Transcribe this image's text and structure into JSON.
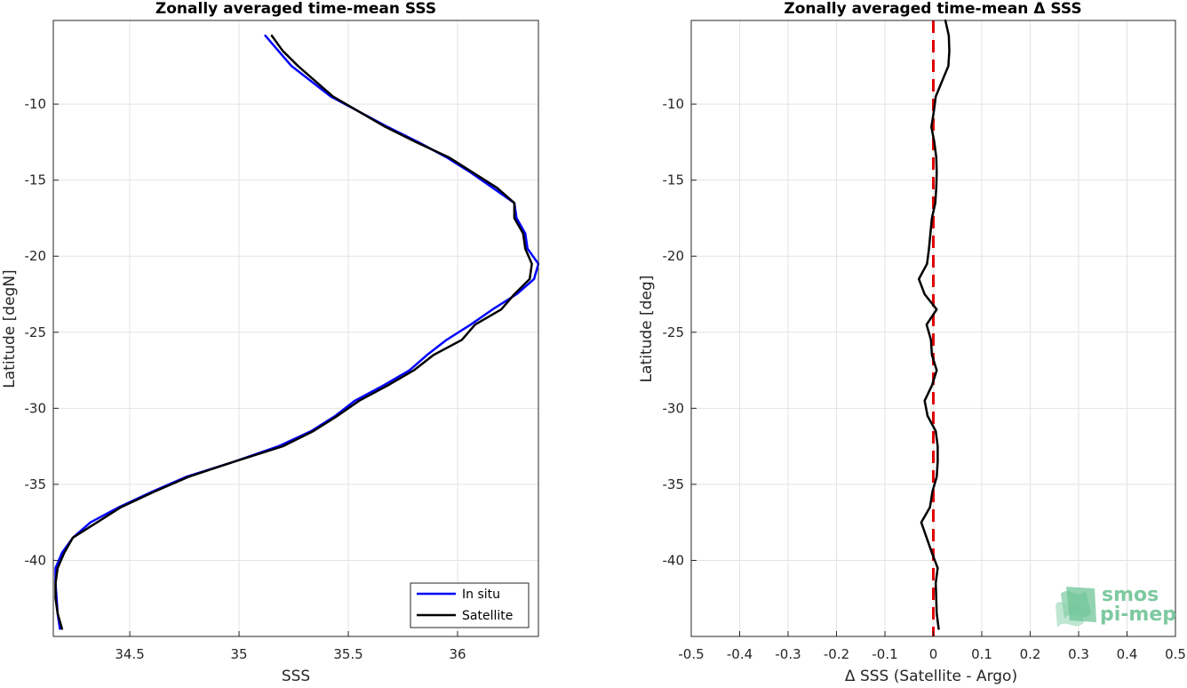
{
  "chart_data": [
    {
      "type": "line",
      "title": "Zonally averaged time-mean SSS",
      "xlabel": "SSS",
      "ylabel": "Latitude [degN]",
      "xlim": [
        34.15,
        36.37
      ],
      "ylim": [
        -45,
        -4.5
      ],
      "xticks": [
        34.5,
        35,
        35.5,
        36
      ],
      "xtick_labels": [
        "34.5",
        "35",
        "35.5",
        "36"
      ],
      "yticks": [
        -40,
        -35,
        -30,
        -25,
        -20,
        -15,
        -10
      ],
      "ytick_labels": [
        "-40",
        "-35",
        "-30",
        "-25",
        "-20",
        "-15",
        "-10"
      ],
      "grid": true,
      "legend_position": "bottom-right",
      "series": [
        {
          "name": "In situ",
          "color": "#0000ff",
          "x": [
            35.12,
            35.18,
            35.24,
            35.33,
            35.42,
            35.55,
            35.68,
            35.82,
            35.95,
            36.06,
            36.16,
            36.26,
            36.27,
            36.31,
            36.32,
            36.37,
            36.35,
            36.27,
            36.16,
            36.06,
            35.95,
            35.86,
            35.78,
            35.66,
            35.53,
            35.44,
            35.33,
            35.18,
            34.98,
            34.76,
            34.6,
            34.45,
            34.32,
            34.24,
            34.19,
            34.16,
            34.16,
            34.17,
            34.18
          ],
          "y": [
            -5.5,
            -6.5,
            -7.5,
            -8.5,
            -9.5,
            -10.5,
            -11.5,
            -12.5,
            -13.5,
            -14.5,
            -15.5,
            -16.5,
            -17.5,
            -18.5,
            -19.5,
            -20.5,
            -21.5,
            -22.5,
            -23.5,
            -24.5,
            -25.5,
            -26.5,
            -27.5,
            -28.5,
            -29.5,
            -30.5,
            -31.5,
            -32.5,
            -33.5,
            -34.5,
            -35.5,
            -36.5,
            -37.5,
            -38.5,
            -39.5,
            -40.5,
            -41.5,
            -43.5,
            -44.5
          ]
        },
        {
          "name": "Satellite",
          "color": "#000000",
          "x": [
            35.15,
            35.2,
            35.27,
            35.35,
            35.43,
            35.55,
            35.67,
            35.81,
            35.96,
            36.07,
            36.18,
            36.26,
            36.26,
            36.3,
            36.31,
            36.34,
            36.33,
            36.26,
            36.2,
            36.08,
            36.02,
            35.89,
            35.8,
            35.68,
            35.55,
            35.45,
            35.34,
            35.2,
            34.98,
            34.77,
            34.61,
            34.46,
            34.35,
            34.24,
            34.2,
            34.17,
            34.16,
            34.16,
            34.17,
            34.19
          ],
          "y": [
            -5.5,
            -6.5,
            -7.5,
            -8.5,
            -9.5,
            -10.5,
            -11.5,
            -12.5,
            -13.5,
            -14.5,
            -15.5,
            -16.5,
            -17.5,
            -18.5,
            -19.5,
            -20.5,
            -21.5,
            -22.5,
            -23.5,
            -24.5,
            -25.5,
            -26.5,
            -27.5,
            -28.5,
            -29.5,
            -30.5,
            -31.5,
            -32.5,
            -33.5,
            -34.5,
            -35.5,
            -36.5,
            -37.5,
            -38.5,
            -39.5,
            -40.5,
            -41.5,
            -42.5,
            -43.5,
            -44.5
          ]
        }
      ]
    },
    {
      "type": "line",
      "title": "Zonally averaged time-mean Δ SSS",
      "xlabel": "Δ SSS (Satellite - Argo)",
      "ylabel": "Latitude [deg]",
      "xlim": [
        -0.5,
        0.5
      ],
      "ylim": [
        -45,
        -4.5
      ],
      "xticks": [
        -0.5,
        -0.4,
        -0.3,
        -0.2,
        -0.1,
        0,
        0.1,
        0.2,
        0.3,
        0.4,
        0.5
      ],
      "xtick_labels": [
        "-0.5",
        "-0.4",
        "-0.3",
        "-0.2",
        "-0.1",
        "0",
        "0.1",
        "0.2",
        "0.3",
        "0.4",
        "0.5"
      ],
      "yticks": [
        -40,
        -35,
        -30,
        -25,
        -20,
        -15,
        -10
      ],
      "ytick_labels": [
        "-40",
        "-35",
        "-30",
        "-25",
        "-20",
        "-15",
        "-10"
      ],
      "grid": true,
      "reference_line": {
        "x": 0,
        "color": "#e00000",
        "style": "dashed"
      },
      "series": [
        {
          "name": "",
          "color": "#000000",
          "x": [
            0.025,
            0.032,
            0.033,
            0.031,
            0.018,
            0.005,
            0.001,
            -0.004,
            0.002,
            0.006,
            0.007,
            0.006,
            0.004,
            -0.003,
            -0.006,
            -0.009,
            -0.013,
            -0.03,
            -0.018,
            0.007,
            -0.014,
            -0.005,
            -0.003,
            0.007,
            -0.003,
            -0.018,
            -0.012,
            0.005,
            0.009,
            0.009,
            0.007,
            -0.002,
            -0.007,
            -0.025,
            -0.014,
            -0.003,
            0.009,
            0.005,
            0.007,
            0.011
          ],
          "y": [
            -4.5,
            -5.5,
            -6.5,
            -7.5,
            -8.5,
            -9.5,
            -10.5,
            -11.5,
            -12.5,
            -13.5,
            -14.5,
            -15.5,
            -16.5,
            -17.5,
            -18.5,
            -19.5,
            -20.5,
            -21.5,
            -22.5,
            -23.5,
            -24.5,
            -25.5,
            -26.5,
            -27.5,
            -28.5,
            -29.5,
            -30.5,
            -31.5,
            -32.5,
            -33.5,
            -34.5,
            -35.5,
            -36.5,
            -37.5,
            -38.5,
            -39.5,
            -40.5,
            -41.5,
            -43.5,
            -44.5
          ]
        }
      ]
    }
  ],
  "logo": {
    "line1": "smos",
    "line2": "pi-mep",
    "color": "#7ec9a0"
  }
}
